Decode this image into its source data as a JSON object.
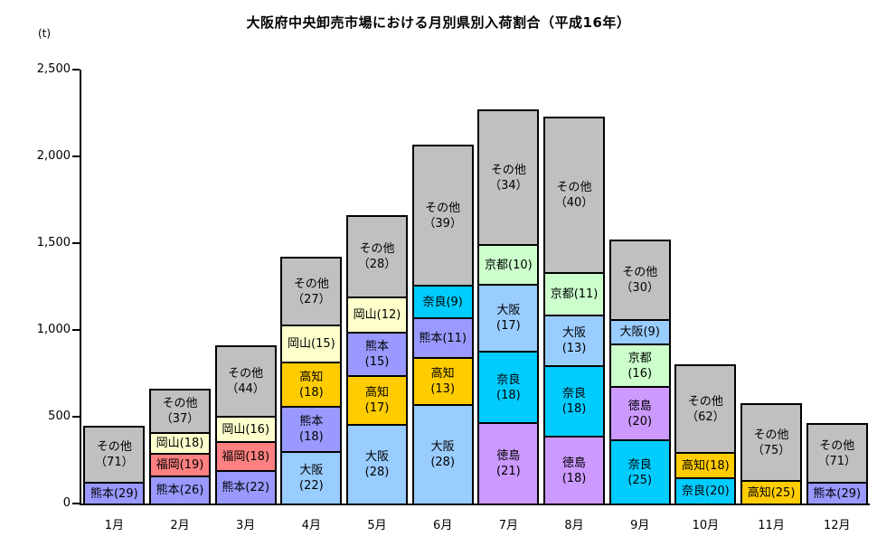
{
  "title": "大阪府中央卸売市場における月別県別入荷割合（平成16年）",
  "unit_label": "(t)",
  "chart_data": {
    "type": "bar",
    "stacked": true,
    "unit": "t",
    "title": "大阪府中央卸売市場における月別県別入荷割合（平成16年）",
    "ylabel": "(t)",
    "ylim": [
      0,
      2500
    ],
    "grid": false,
    "legend": "none",
    "y_ticks": [
      "0",
      "500",
      "1,000",
      "1,500",
      "2,000",
      "2,500"
    ],
    "y_tick_values": [
      0,
      500,
      1000,
      1500,
      2000,
      2500
    ],
    "categories": [
      "1月",
      "2月",
      "3月",
      "4月",
      "5月",
      "6月",
      "7月",
      "8月",
      "9月",
      "10月",
      "11月",
      "12月"
    ],
    "totals_t": [
      460,
      670,
      920,
      1430,
      1670,
      2080,
      2280,
      2240,
      1530,
      810,
      590,
      475
    ],
    "colors": {
      "熊本": "#9999FF",
      "福岡": "#FF8080",
      "岡山": "#FFFFCC",
      "大阪": "#99CCFF",
      "高知": "#FFCC00",
      "奈良": "#00CCFF",
      "徳島": "#CC99FF",
      "京都": "#CCFFCC",
      "その他": "#C0C0C0"
    },
    "bars": [
      {
        "month": "1月",
        "total_t": 460,
        "segments": [
          {
            "name": "熊本",
            "pct": 29,
            "label_lines": [
              "熊本(29)"
            ]
          },
          {
            "name": "その他",
            "pct": 71,
            "label_lines": [
              "その他",
              "（71）"
            ]
          }
        ]
      },
      {
        "month": "2月",
        "total_t": 670,
        "segments": [
          {
            "name": "熊本",
            "pct": 26,
            "label_lines": [
              "熊本(26)"
            ]
          },
          {
            "name": "福岡",
            "pct": 19,
            "label_lines": [
              "福岡(19)"
            ]
          },
          {
            "name": "岡山",
            "pct": 18,
            "label_lines": [
              "岡山(18)"
            ]
          },
          {
            "name": "その他",
            "pct": 37,
            "label_lines": [
              "その他",
              "（37）"
            ]
          }
        ]
      },
      {
        "month": "3月",
        "total_t": 920,
        "segments": [
          {
            "name": "熊本",
            "pct": 22,
            "label_lines": [
              "熊本(22)"
            ]
          },
          {
            "name": "福岡",
            "pct": 18,
            "label_lines": [
              "福岡(18)"
            ]
          },
          {
            "name": "岡山",
            "pct": 16,
            "label_lines": [
              "岡山(16)"
            ]
          },
          {
            "name": "その他",
            "pct": 44,
            "label_lines": [
              "その他",
              "（44）"
            ]
          }
        ]
      },
      {
        "month": "4月",
        "total_t": 1430,
        "segments": [
          {
            "name": "大阪",
            "pct": 22,
            "label_lines": [
              "大阪",
              "(22)"
            ]
          },
          {
            "name": "熊本",
            "pct": 18,
            "label_lines": [
              "熊本",
              "(18)"
            ]
          },
          {
            "name": "高知",
            "pct": 18,
            "label_lines": [
              "高知",
              "(18)"
            ]
          },
          {
            "name": "岡山",
            "pct": 15,
            "label_lines": [
              "岡山(15)"
            ]
          },
          {
            "name": "その他",
            "pct": 27,
            "label_lines": [
              "その他",
              "（27）"
            ]
          }
        ]
      },
      {
        "month": "5月",
        "total_t": 1670,
        "segments": [
          {
            "name": "大阪",
            "pct": 28,
            "label_lines": [
              "大阪",
              "(28)"
            ]
          },
          {
            "name": "高知",
            "pct": 17,
            "label_lines": [
              "高知",
              "(17)"
            ]
          },
          {
            "name": "熊本",
            "pct": 15,
            "label_lines": [
              "熊本",
              "(15)"
            ]
          },
          {
            "name": "岡山",
            "pct": 12,
            "label_lines": [
              "岡山(12)"
            ]
          },
          {
            "name": "その他",
            "pct": 28,
            "label_lines": [
              "その他",
              "（28）"
            ]
          }
        ]
      },
      {
        "month": "6月",
        "total_t": 2080,
        "segments": [
          {
            "name": "大阪",
            "pct": 28,
            "label_lines": [
              "大阪",
              "(28)"
            ]
          },
          {
            "name": "高知",
            "pct": 13,
            "label_lines": [
              "高知",
              "(13)"
            ]
          },
          {
            "name": "熊本",
            "pct": 11,
            "label_lines": [
              "熊本(11)"
            ]
          },
          {
            "name": "奈良",
            "pct": 9,
            "label_lines": [
              "奈良(9)"
            ]
          },
          {
            "name": "その他",
            "pct": 39,
            "label_lines": [
              "その他",
              "（39）"
            ]
          }
        ]
      },
      {
        "month": "7月",
        "total_t": 2280,
        "segments": [
          {
            "name": "徳島",
            "pct": 21,
            "label_lines": [
              "徳島",
              "(21)"
            ]
          },
          {
            "name": "奈良",
            "pct": 18,
            "label_lines": [
              "奈良",
              "(18)"
            ]
          },
          {
            "name": "大阪",
            "pct": 17,
            "label_lines": [
              "大阪",
              "(17)"
            ]
          },
          {
            "name": "京都",
            "pct": 10,
            "label_lines": [
              "京都(10)"
            ]
          },
          {
            "name": "その他",
            "pct": 34,
            "label_lines": [
              "その他",
              "（34）"
            ]
          }
        ]
      },
      {
        "month": "8月",
        "total_t": 2240,
        "segments": [
          {
            "name": "徳島",
            "pct": 18,
            "label_lines": [
              "徳島",
              "(18)"
            ]
          },
          {
            "name": "奈良",
            "pct": 18,
            "label_lines": [
              "奈良",
              "(18)"
            ]
          },
          {
            "name": "大阪",
            "pct": 13,
            "label_lines": [
              "大阪",
              "(13)"
            ]
          },
          {
            "name": "京都",
            "pct": 11,
            "label_lines": [
              "京都(11)"
            ]
          },
          {
            "name": "その他",
            "pct": 40,
            "label_lines": [
              "その他",
              "（40）"
            ]
          }
        ]
      },
      {
        "month": "9月",
        "total_t": 1530,
        "segments": [
          {
            "name": "奈良",
            "pct": 25,
            "label_lines": [
              "奈良",
              "(25)"
            ]
          },
          {
            "name": "徳島",
            "pct": 20,
            "label_lines": [
              "徳島",
              "(20)"
            ]
          },
          {
            "name": "京都",
            "pct": 16,
            "label_lines": [
              "京都",
              "(16)"
            ]
          },
          {
            "name": "大阪",
            "pct": 9,
            "label_lines": [
              "大阪(9)"
            ]
          },
          {
            "name": "その他",
            "pct": 30,
            "label_lines": [
              "その他",
              "（30）"
            ]
          }
        ]
      },
      {
        "month": "10月",
        "total_t": 810,
        "segments": [
          {
            "name": "奈良",
            "pct": 20,
            "label_lines": [
              "奈良(20)"
            ]
          },
          {
            "name": "高知",
            "pct": 18,
            "label_lines": [
              "高知(18)"
            ]
          },
          {
            "name": "その他",
            "pct": 62,
            "label_lines": [
              "その他",
              "（62）"
            ]
          }
        ]
      },
      {
        "month": "11月",
        "total_t": 590,
        "segments": [
          {
            "name": "高知",
            "pct": 25,
            "label_lines": [
              "高知(25)"
            ]
          },
          {
            "name": "その他",
            "pct": 75,
            "label_lines": [
              "その他",
              "（75）"
            ]
          }
        ]
      },
      {
        "month": "12月",
        "total_t": 475,
        "segments": [
          {
            "name": "熊本",
            "pct": 29,
            "label_lines": [
              "熊本(29)"
            ]
          },
          {
            "name": "その他",
            "pct": 71,
            "label_lines": [
              "その他",
              "（71）"
            ]
          }
        ]
      }
    ]
  }
}
